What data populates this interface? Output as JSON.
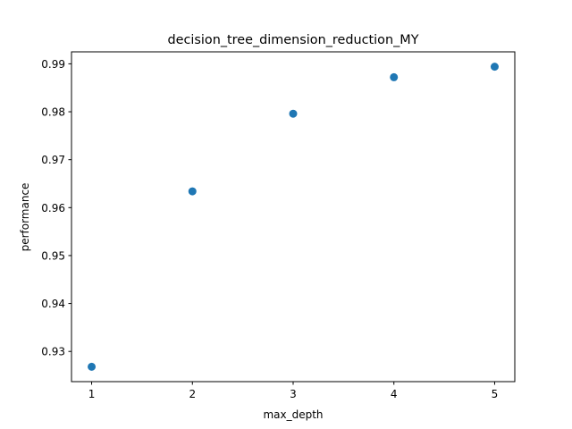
{
  "chart_data": {
    "type": "scatter",
    "title": "decision_tree_dimension_reduction_MY",
    "xlabel": "max_depth",
    "ylabel": "performance",
    "x": [
      1,
      2,
      3,
      4,
      5
    ],
    "y": [
      0.9268,
      0.9634,
      0.9796,
      0.9872,
      0.9894
    ],
    "xticks": [
      "1",
      "2",
      "3",
      "4",
      "5"
    ],
    "yticks": [
      "0.93",
      "0.94",
      "0.95",
      "0.96",
      "0.97",
      "0.98",
      "0.99"
    ],
    "xlim": [
      0.8,
      5.2
    ],
    "ylim": [
      0.9237,
      0.9925
    ],
    "grid": false,
    "marker_color": "#1f77b4"
  }
}
